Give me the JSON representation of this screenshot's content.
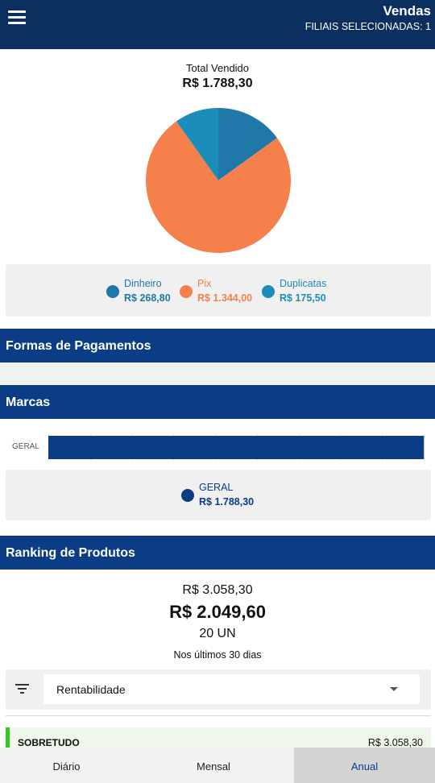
{
  "header": {
    "title": "Vendas",
    "filiais": "FILIAIS SELECIONADAS: 1",
    "menu_icon": "hamburger-menu-icon"
  },
  "summary": {
    "label": "Total Vendido",
    "value": "R$ 1.788,30"
  },
  "chart_data": {
    "type": "pie",
    "labels": [
      "Dinheiro",
      "Pix",
      "Duplicatas"
    ],
    "values": [
      268.8,
      1344.0,
      175.5
    ],
    "display_values": [
      "R$ 268,80",
      "R$ 1.344,00",
      "R$ 175,50"
    ],
    "colors": [
      "#1f78a8",
      "#f5804b",
      "#1a8eb8"
    ],
    "legend_placement": "bottom"
  },
  "sections": {
    "formas": "Formas de Pagamentos",
    "marcas": "Marcas",
    "ranking": "Ranking de Produtos"
  },
  "marcas_chart": {
    "type": "bar",
    "orientation": "horizontal",
    "categories": [
      "GERAL"
    ],
    "values": [
      1788.3
    ],
    "display_value": "R$ 1.788,30",
    "color": "#0b3c86",
    "grid": true
  },
  "ranking": {
    "line1": "R$ 3.058,30",
    "line2": "R$ 2.049,60",
    "line3": "20 UN",
    "period": "Nos últimos 30 dias",
    "filter_icon": "filter-list-icon",
    "sort_selected": "Rentabilidade",
    "rows": [
      {
        "name": "SOBRETUDO",
        "value": "R$ 3.058,30"
      }
    ]
  },
  "bottom_nav": {
    "tabs": [
      {
        "label": "Diário",
        "active": false
      },
      {
        "label": "Mensal",
        "active": false
      },
      {
        "label": "Anual",
        "active": true
      }
    ]
  }
}
